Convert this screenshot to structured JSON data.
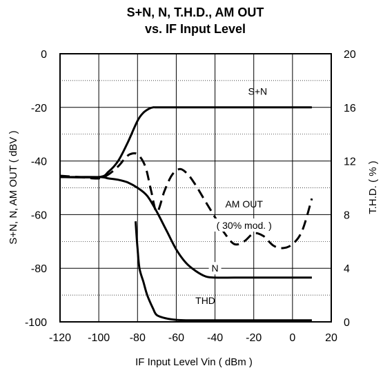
{
  "chart_data": {
    "type": "line",
    "title_lines": [
      "S+N, N, T.H.D., AM OUT",
      "vs. IF Input Level"
    ],
    "xlabel": "IF Input Level Vin ( dBm )",
    "ylabel_left": "S+N, N, AM OUT ( dBV )",
    "ylabel_right": "T.H.D. ( % )",
    "xlim": [
      -120,
      20
    ],
    "ylim_left": [
      -100,
      0
    ],
    "ylim_right": [
      0,
      20
    ],
    "x_ticks": [
      "-120",
      "-100",
      "-80",
      "-60",
      "-40",
      "-20",
      "0",
      "20"
    ],
    "y_left_ticks": [
      "0",
      "-20",
      "-40",
      "-60",
      "-80",
      "-100"
    ],
    "y_right_ticks": [
      "20",
      "16",
      "12",
      "8",
      "4",
      "0"
    ],
    "grid": true,
    "series": [
      {
        "name": "S+N",
        "axis": "left",
        "dash": "solid",
        "x": [
          -120,
          -100,
          -95,
          -90,
          -85,
          -80,
          -77,
          -74,
          -72,
          -70,
          -60,
          -40,
          -20,
          0,
          10
        ],
        "y": [
          -46,
          -46,
          -44,
          -40,
          -33,
          -25,
          -22,
          -20.5,
          -20,
          -20,
          -20,
          -20,
          -20,
          -20,
          -20
        ]
      },
      {
        "name": "N",
        "axis": "left",
        "dash": "solid",
        "x": [
          -120,
          -100,
          -95,
          -90,
          -85,
          -80,
          -75,
          -70,
          -65,
          -60,
          -55,
          -50,
          -45,
          -40,
          -30,
          -20,
          0,
          10
        ],
        "y": [
          -46,
          -46,
          -46.5,
          -47,
          -48,
          -50,
          -53,
          -59,
          -66,
          -73,
          -78,
          -81,
          -83,
          -83.5,
          -83.5,
          -83.5,
          -83.5,
          -83.5
        ]
      },
      {
        "name": "AM OUT ( 30% mod. )",
        "axis": "left",
        "dash": "dashed",
        "x": [
          -120,
          -110,
          -100,
          -95,
          -90,
          -87,
          -84,
          -80,
          -76,
          -73,
          -70,
          -66,
          -62,
          -58,
          -54,
          -50,
          -45,
          -40,
          -35,
          -30,
          -25,
          -20,
          -15,
          -10,
          -5,
          0,
          5,
          10
        ],
        "y": [
          -45.5,
          -46,
          -46.5,
          -45,
          -42,
          -39.5,
          -37.5,
          -37.5,
          -42,
          -51,
          -59,
          -51,
          -45,
          -43,
          -45,
          -49,
          -55,
          -61,
          -67,
          -71,
          -70,
          -67,
          -68,
          -71.5,
          -72.5,
          -71,
          -66,
          -54
        ]
      },
      {
        "name": "THD",
        "axis": "right",
        "dash": "solid",
        "x": [
          -81,
          -80,
          -79,
          -77,
          -75,
          -72,
          -70,
          -65,
          -60,
          -55,
          -40,
          -20,
          0,
          10
        ],
        "y": [
          7.5,
          5.5,
          4.0,
          3.0,
          2.0,
          1.0,
          0.5,
          0.25,
          0.15,
          0.12,
          0.12,
          0.12,
          0.12,
          0.12
        ]
      }
    ],
    "annotations": [
      {
        "text": "S+N",
        "x": -18,
        "y": -14
      },
      {
        "text": "AM OUT",
        "x": -25,
        "y": -56
      },
      {
        "text": "( 30% mod. )",
        "x": -25,
        "y": -64
      },
      {
        "text": "N",
        "x": -40,
        "y": -80
      },
      {
        "text": "THD",
        "x": -45,
        "y": -92
      }
    ]
  }
}
